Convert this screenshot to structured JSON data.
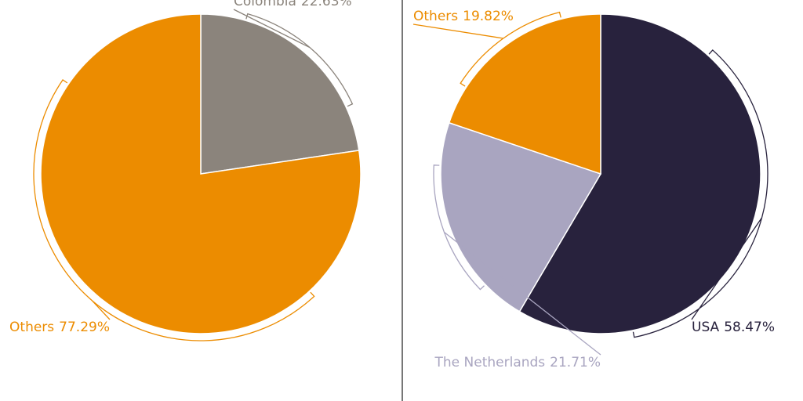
{
  "chart_data": [
    {
      "type": "pie",
      "categories": [
        "Colombia",
        "Others"
      ],
      "values": [
        22.63,
        77.29
      ],
      "value_labels": [
        "22.63%",
        "77.29%"
      ],
      "colors": [
        "#8b847c",
        "#ec8c00"
      ]
    },
    {
      "type": "pie",
      "categories": [
        "USA",
        "The Netherlands",
        "Others"
      ],
      "values": [
        58.47,
        21.71,
        19.82
      ],
      "value_labels": [
        "58.47%",
        "21.71%",
        "19.82%"
      ],
      "colors": [
        "#28223d",
        "#a9a5c0",
        "#ec8c00"
      ]
    }
  ]
}
